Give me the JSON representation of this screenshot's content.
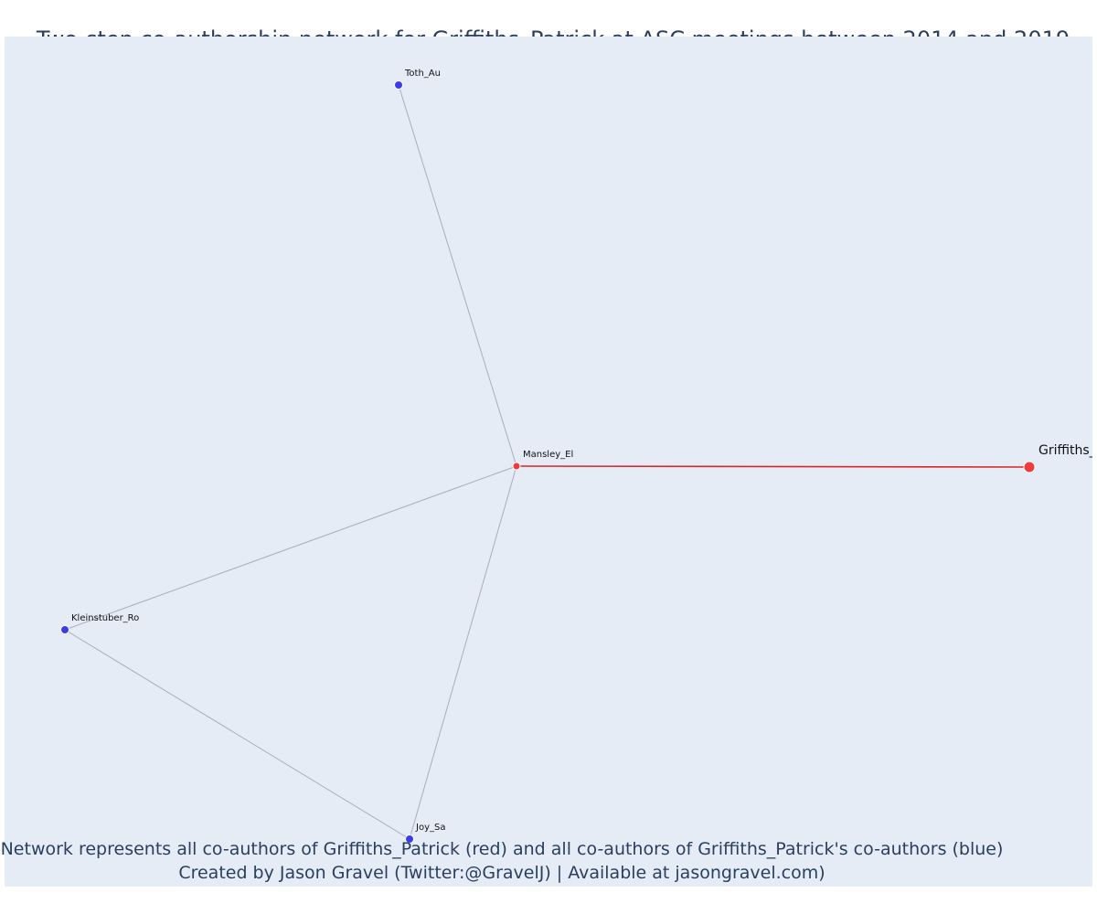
{
  "title": "Two-step co-authorship network for Griffiths_Patrick at ASC meetings between 2014 and 2019",
  "footer": {
    "line1": "Network represents all co-authors of Griffiths_Patrick (red) and all co-authors of Griffiths_Patrick's co-authors (blue)",
    "line2": "Created by Jason Gravel (Twitter:@GravelJ) | Available at jasongravel.com)"
  },
  "colors": {
    "background": "#e5ecf6",
    "red_node": "#ef3b3b",
    "blue_node": "#3b3bef",
    "red_edge": "#d62728",
    "grey_edge": "#a9acc0"
  },
  "network": {
    "nodes": [
      {
        "id": "Griffiths_Patrick",
        "label": "Griffiths_",
        "group": "ego"
      },
      {
        "id": "Mansley_El",
        "label": "Mansley_El",
        "group": "coauthor"
      },
      {
        "id": "Toth_Au",
        "label": "Toth_Au",
        "group": "second"
      },
      {
        "id": "Kleinstuber_Ro",
        "label": "Kleinstuber_Ro",
        "group": "second"
      },
      {
        "id": "Joy_Sa",
        "label": "Joy_Sa",
        "group": "second"
      }
    ],
    "edges": [
      {
        "source": "Griffiths_Patrick",
        "target": "Mansley_El",
        "type": "red"
      },
      {
        "source": "Mansley_El",
        "target": "Toth_Au",
        "type": "grey"
      },
      {
        "source": "Mansley_El",
        "target": "Kleinstuber_Ro",
        "type": "grey"
      },
      {
        "source": "Mansley_El",
        "target": "Joy_Sa",
        "type": "grey"
      },
      {
        "source": "Kleinstuber_Ro",
        "target": "Joy_Sa",
        "type": "grey"
      }
    ]
  }
}
